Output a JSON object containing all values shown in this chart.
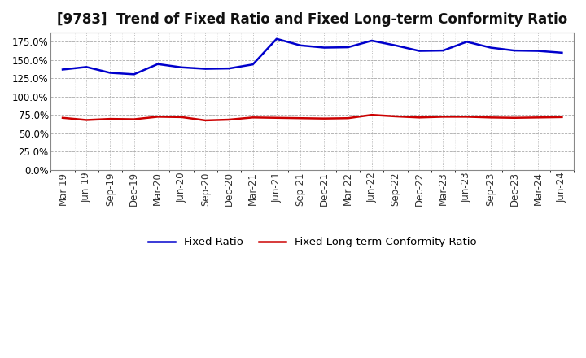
{
  "title": "[9783]  Trend of Fixed Ratio and Fixed Long-term Conformity Ratio",
  "x_labels": [
    "Mar-19",
    "Jun-19",
    "Sep-19",
    "Dec-19",
    "Mar-20",
    "Jun-20",
    "Sep-20",
    "Dec-20",
    "Mar-21",
    "Jun-21",
    "Sep-21",
    "Dec-21",
    "Mar-22",
    "Jun-22",
    "Sep-22",
    "Dec-22",
    "Mar-23",
    "Jun-23",
    "Sep-23",
    "Dec-23",
    "Mar-24",
    "Jun-24"
  ],
  "fixed_ratio": [
    137.0,
    140.5,
    132.5,
    130.5,
    144.5,
    140.0,
    138.0,
    138.5,
    144.0,
    179.0,
    170.0,
    167.0,
    167.5,
    176.5,
    170.0,
    162.5,
    163.0,
    175.0,
    167.0,
    163.0,
    162.5,
    160.0
  ],
  "fixed_lt_ratio": [
    71.0,
    68.0,
    69.5,
    69.0,
    72.5,
    72.0,
    67.5,
    68.5,
    71.5,
    71.0,
    70.5,
    70.0,
    70.5,
    75.0,
    73.0,
    71.5,
    72.5,
    72.5,
    71.5,
    71.0,
    71.5,
    72.0
  ],
  "fixed_ratio_color": "#0000cc",
  "fixed_lt_ratio_color": "#cc0000",
  "ylim": [
    0.0,
    187.5
  ],
  "yticks": [
    0.0,
    25.0,
    50.0,
    75.0,
    100.0,
    125.0,
    150.0,
    175.0
  ],
  "background_color": "#ffffff",
  "plot_bg_color": "#ffffff",
  "legend_fixed_ratio": "Fixed Ratio",
  "legend_fixed_lt_ratio": "Fixed Long-term Conformity Ratio",
  "title_fontsize": 12,
  "axis_fontsize": 8.5,
  "legend_fontsize": 9.5,
  "line_width": 1.8,
  "grid_major_color": "#aaaaaa",
  "grid_minor_color": "#cccccc"
}
